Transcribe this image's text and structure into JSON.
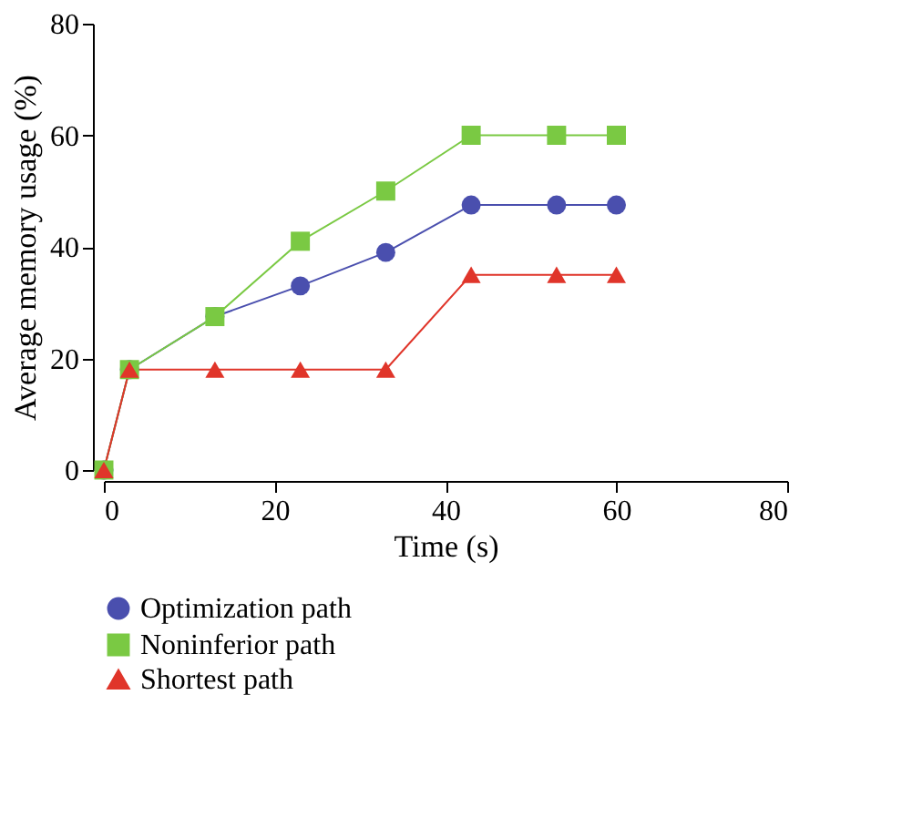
{
  "chart_data": {
    "type": "line",
    "xlabel": "Time (s)",
    "ylabel": "Average memory usage (%)",
    "x": [
      0,
      3,
      13,
      23,
      33,
      43,
      53,
      60
    ],
    "series": [
      {
        "name": "Optimization path",
        "color": "#4a4fae",
        "marker": "circle",
        "values": [
          0,
          18,
          27.5,
          33,
          39,
          47.5,
          47.5,
          47.5
        ]
      },
      {
        "name": "Noninferior path",
        "color": "#7ac943",
        "marker": "square",
        "values": [
          0,
          18,
          27.5,
          41,
          50,
          60,
          60,
          60
        ]
      },
      {
        "name": "Shortest path",
        "color": "#e0352a",
        "marker": "triangle",
        "values": [
          0,
          18,
          18,
          18,
          18,
          35,
          35,
          35
        ]
      }
    ],
    "xlim": [
      0,
      80
    ],
    "xticks": [
      0,
      20,
      40,
      60,
      80
    ],
    "ylim": [
      0,
      80
    ],
    "yticks": [
      0,
      20,
      40,
      60,
      80
    ],
    "grid": false,
    "legend": "bottom",
    "line_style": "solid"
  }
}
